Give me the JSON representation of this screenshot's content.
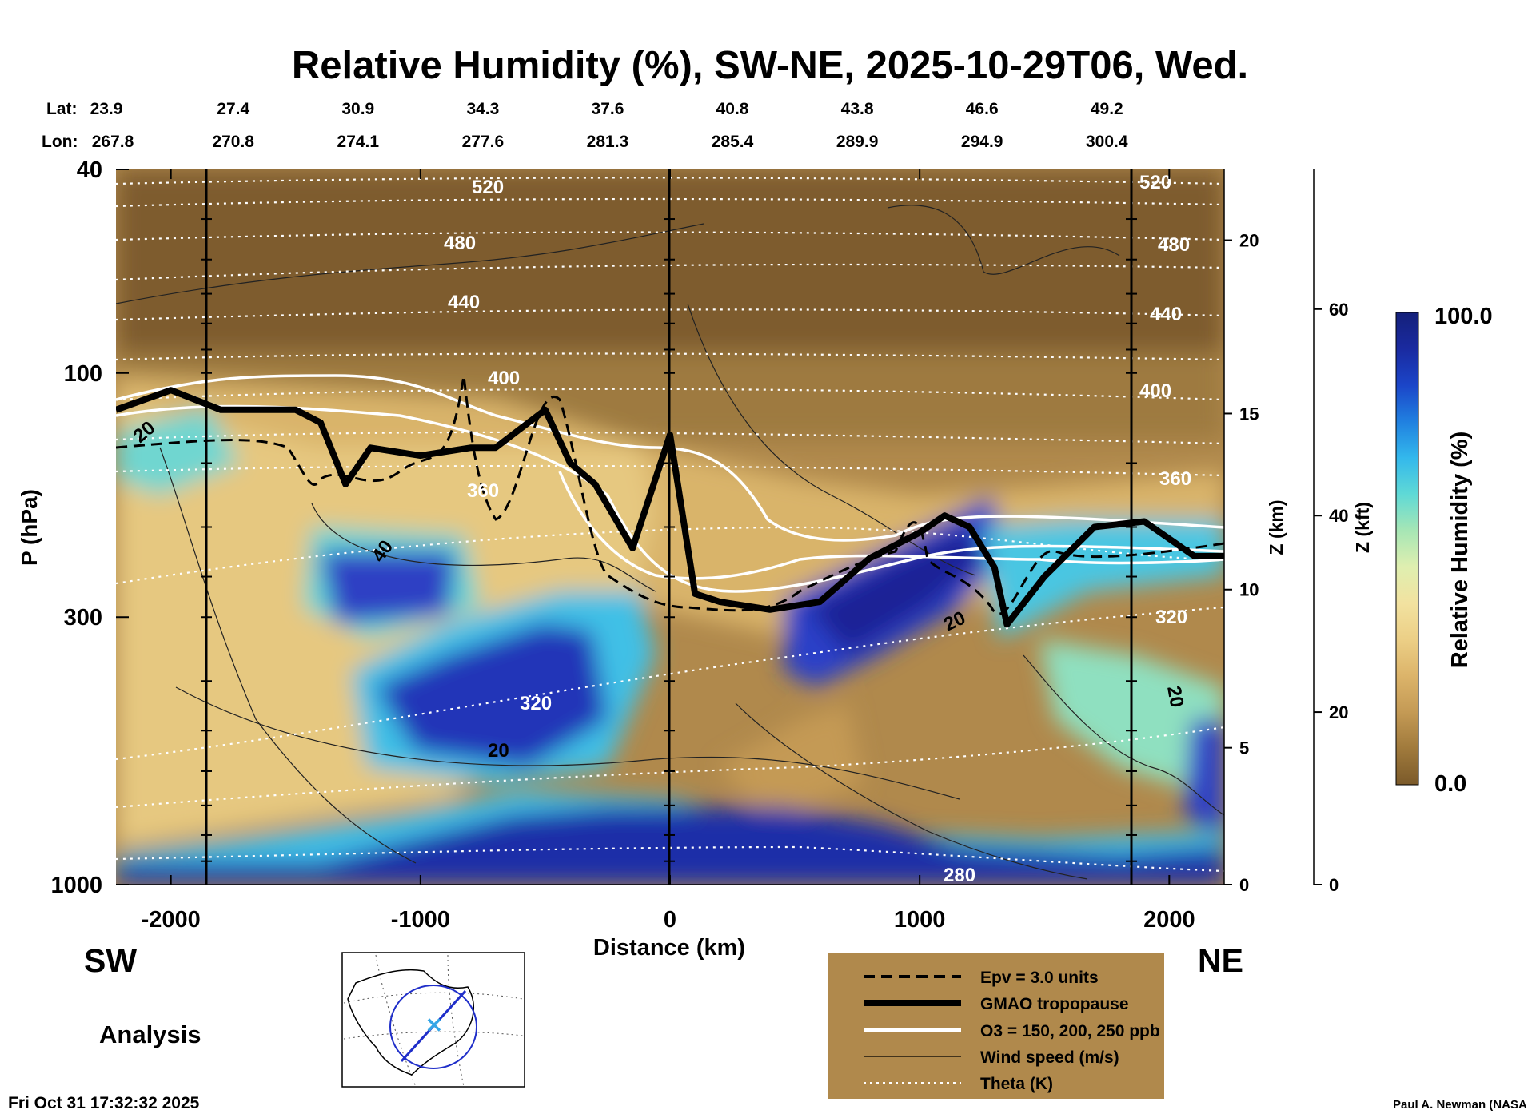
{
  "title": "Relative Humidity (%), SW-NE, 2025-10-29T06, Wed.",
  "lat_label": "Lat:",
  "lon_label": "Lon:",
  "lat_values": [
    "23.9",
    "27.4",
    "30.9",
    "34.3",
    "37.6",
    "40.8",
    "43.8",
    "46.6",
    "49.2"
  ],
  "lon_values": [
    "267.8",
    "270.8",
    "274.1",
    "277.6",
    "281.3",
    "285.4",
    "289.9",
    "294.9",
    "300.4"
  ],
  "left_end": "SW",
  "right_end": "NE",
  "analysis_label": "Analysis",
  "timestamp": "Fri Oct 31 17:32:32 2025",
  "credit": "Paul A. Newman (NASA",
  "colorbar": {
    "label": "Relative Humidity (%)",
    "max_label": "100.0",
    "min_label": "0.0",
    "colors": [
      "#7b5a2a",
      "#a07a3c",
      "#c49a55",
      "#dcb46a",
      "#eccf86",
      "#f2e2a0",
      "#dfefb0",
      "#a6e6b5",
      "#5fd9d6",
      "#33b8ec",
      "#2080e0",
      "#1b45c8",
      "#1a2aa0",
      "#14207a"
    ]
  },
  "legend": {
    "entries": [
      {
        "style": "dashed",
        "label": "Epv = 3.0 units"
      },
      {
        "style": "thick",
        "label": "GMAO tropopause"
      },
      {
        "style": "white",
        "label": "O3 = 150, 200, 250 ppb"
      },
      {
        "style": "thin",
        "label": "Wind speed (m/s)"
      },
      {
        "style": "dotted",
        "label": "Theta (K)"
      }
    ]
  },
  "chart_data": {
    "type": "heatmap",
    "title": "Relative Humidity (%), SW-NE, 2025-10-29T06, Wed.",
    "xlabel": "Distance (km)",
    "ylabel": "P (hPa)",
    "ylabel_right_km": "Z (km)",
    "ylabel_right_kft": "Z (kft)",
    "xlim": [
      -2220,
      2220
    ],
    "ylim": [
      1000,
      40
    ],
    "y_scale": "log",
    "x_ticks": [
      "-2000",
      "-1000",
      "0",
      "1000",
      "2000"
    ],
    "y_ticks": [
      "40",
      "100",
      "300",
      "1000"
    ],
    "z_km_ticks": [
      "0",
      "5",
      "10",
      "15",
      "20"
    ],
    "z_kft_ticks": [
      "0",
      "20",
      "40",
      "60"
    ],
    "colorbar_range": [
      0,
      100
    ],
    "theta_contours_K": [
      "520",
      "480",
      "440",
      "400",
      "360",
      "320",
      "280"
    ],
    "wind_speed_contours_mps": [
      "20",
      "40",
      "20",
      "20",
      "20"
    ],
    "tropopause_pressure_hPa": {
      "x": [
        -2220,
        -2000,
        -1800,
        -1500,
        -1400,
        -1300,
        -1200,
        -1000,
        -800,
        -700,
        -500,
        -400,
        -300,
        -150,
        0,
        100,
        200,
        400,
        600,
        800,
        1000,
        1100,
        1200,
        1300,
        1350,
        1500,
        1700,
        1900,
        2100,
        2220
      ],
      "p": [
        118,
        108,
        118,
        118,
        125,
        165,
        140,
        145,
        140,
        140,
        118,
        150,
        165,
        220,
        132,
        270,
        280,
        290,
        280,
        230,
        205,
        190,
        200,
        240,
        310,
        250,
        200,
        195,
        228,
        228
      ]
    }
  }
}
